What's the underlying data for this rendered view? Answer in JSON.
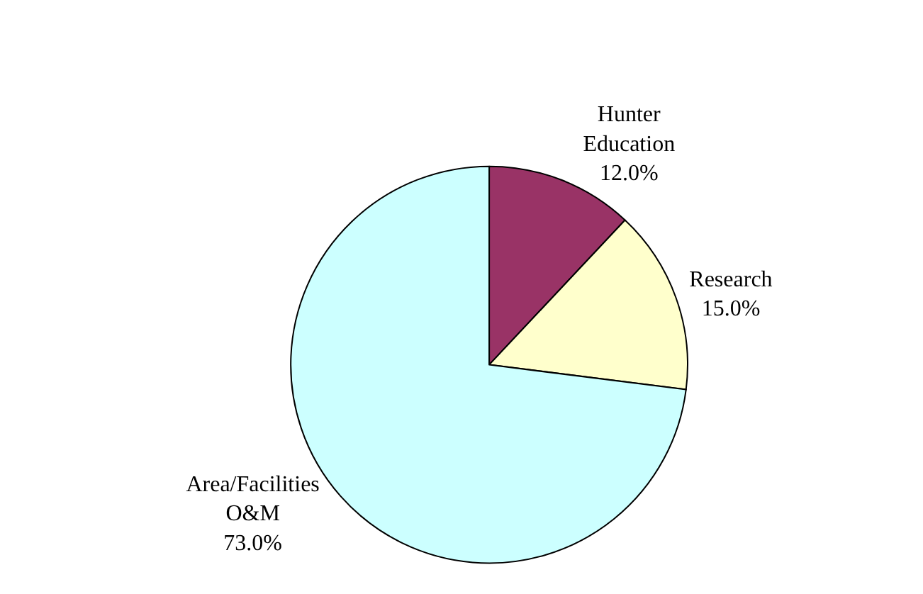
{
  "chart_data": {
    "type": "pie",
    "categories": [
      "Hunter Education",
      "Research",
      "Area/Facilities O&M"
    ],
    "values": [
      12.0,
      15.0,
      73.0
    ],
    "colors": [
      "#993366",
      "#ffffcc",
      "#ccffff"
    ],
    "value_labels": [
      "12.0%",
      "15.0%",
      "73.0%"
    ],
    "legend": false
  }
}
